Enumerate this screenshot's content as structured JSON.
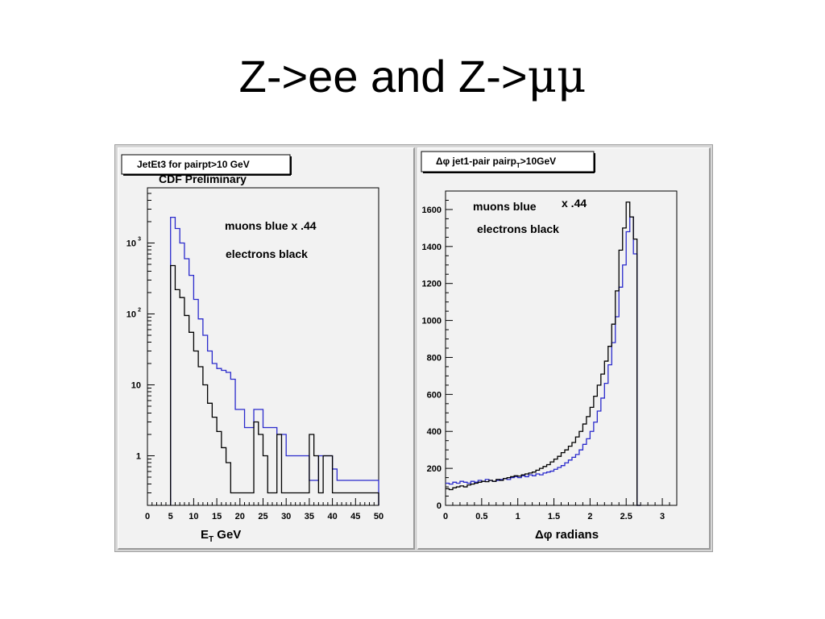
{
  "slide": {
    "title_prefix": "Z->ee and Z->",
    "title_mu": "μμ"
  },
  "chart_data": [
    {
      "type": "line",
      "title": "JetEt3 for pairpt>10 GeV",
      "subtitle": "CDF Preliminary",
      "xlabel": "E_T GeV",
      "xlabel_main": "E",
      "xlabel_sub": "T",
      "xlabel_rest": " GeV",
      "ylabel": "",
      "yscale": "log",
      "xlim": [
        0,
        50
      ],
      "ylim": [
        0.2,
        6000
      ],
      "xticks": [
        "0",
        "5",
        "10",
        "15",
        "20",
        "25",
        "30",
        "35",
        "40",
        "45",
        "50"
      ],
      "yticks": [
        {
          "value": 1,
          "base": "1",
          "exp": ""
        },
        {
          "value": 10,
          "base": "10",
          "exp": ""
        },
        {
          "value": 100,
          "base": "10",
          "exp": "2"
        },
        {
          "value": 1000,
          "base": "10",
          "exp": "3"
        }
      ],
      "annotations": [
        "muons blue x .44",
        "electrons black"
      ],
      "bin_edges_start": 5,
      "bin_width": 1,
      "series": [
        {
          "color": "#2a2acc",
          "values": [
            2300,
            1600,
            1000,
            600,
            350,
            160,
            85,
            50,
            30,
            20,
            17,
            16,
            15,
            12,
            4.5,
            4.5,
            2.5,
            2.5,
            4.5,
            4.5,
            2.5,
            2.5,
            2.5,
            2,
            2,
            1,
            1,
            1,
            1,
            1,
            0.45,
            0.45,
            1,
            1,
            1,
            0.65,
            0.45,
            0.45,
            0.45,
            0.45,
            0.45,
            0.45,
            0.45,
            0.45,
            0.45
          ]
        },
        {
          "color": "#000000",
          "values": [
            480,
            220,
            170,
            95,
            55,
            30,
            18,
            10,
            5.5,
            3.5,
            2.2,
            1.3,
            0.8,
            0.3,
            0.3,
            0.3,
            0.3,
            0.3,
            3,
            2,
            1,
            0.3,
            0.3,
            2,
            0.3,
            0.3,
            0.3,
            0.3,
            0.3,
            0.3,
            2,
            1,
            0.3,
            1,
            1,
            0.3,
            0.3,
            0.3,
            0.3,
            0.3,
            0.3,
            0.3,
            0.3,
            0.3,
            0.3
          ]
        }
      ]
    },
    {
      "type": "line",
      "title": "Δφ jet1-pair pairp_T>10GeV",
      "title_main": "Δφ jet1-pair pairp",
      "title_sub": "T",
      "title_rest": ">10GeV",
      "xlabel": "Δφ radians",
      "ylabel": "",
      "xlim": [
        0,
        3.2
      ],
      "ylim": [
        0,
        1700
      ],
      "xticks": [
        "0",
        "0.5",
        "1",
        "1.5",
        "2",
        "2.5",
        "3"
      ],
      "yticks": [
        "0",
        "200",
        "400",
        "600",
        "800",
        "1000",
        "1200",
        "1400",
        "1600"
      ],
      "annotations": [
        "muons blue",
        "x .44",
        "electrons black"
      ],
      "bin_width": 0.05,
      "series": [
        {
          "color": "#2a2acc",
          "values": [
            120,
            115,
            125,
            120,
            130,
            125,
            120,
            130,
            125,
            135,
            130,
            140,
            135,
            130,
            135,
            140,
            145,
            140,
            150,
            155,
            150,
            160,
            155,
            165,
            160,
            170,
            165,
            175,
            180,
            185,
            195,
            205,
            215,
            230,
            245,
            260,
            275,
            300,
            330,
            360,
            400,
            450,
            510,
            580,
            660,
            760,
            880,
            1020,
            1180,
            1300,
            1480,
            1560,
            1360,
            0
          ]
        },
        {
          "color": "#000000",
          "values": [
            90,
            85,
            95,
            100,
            105,
            100,
            110,
            115,
            120,
            125,
            130,
            128,
            135,
            130,
            140,
            135,
            145,
            150,
            155,
            160,
            158,
            165,
            170,
            175,
            180,
            190,
            200,
            210,
            220,
            235,
            250,
            265,
            285,
            300,
            320,
            340,
            370,
            400,
            440,
            480,
            530,
            590,
            650,
            710,
            780,
            860,
            980,
            1160,
            1380,
            1500,
            1640,
            1560,
            1440,
            0
          ]
        }
      ]
    }
  ]
}
